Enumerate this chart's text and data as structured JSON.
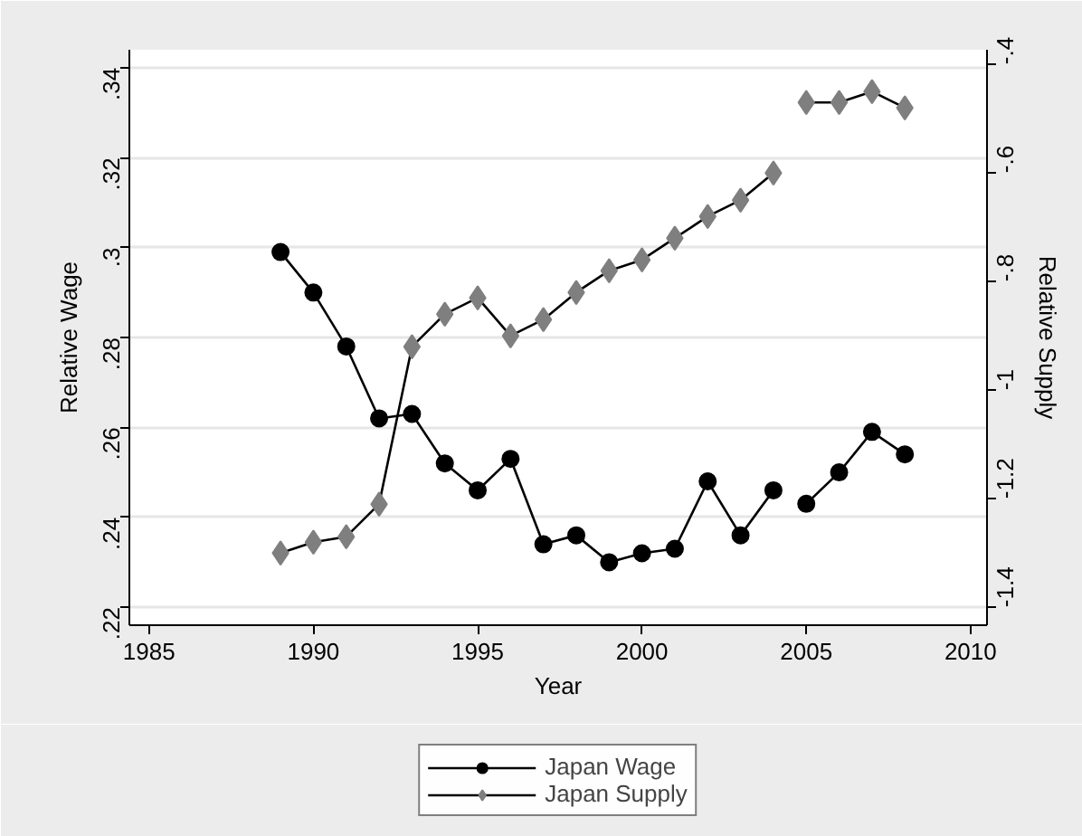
{
  "chart_data": {
    "type": "line",
    "xlabel": "Year",
    "ylabel": "Relative Wage",
    "y2label": "Relative Supply",
    "x": [
      1989,
      1990,
      1991,
      1992,
      1993,
      1994,
      1995,
      1996,
      1997,
      1998,
      1999,
      2000,
      2001,
      2002,
      2003,
      2004,
      2005,
      2006,
      2007,
      2008
    ],
    "series": [
      {
        "name": "Japan Wage",
        "color": "#000000",
        "marker": "circle",
        "values": [
          0.299,
          0.29,
          0.278,
          0.262,
          0.263,
          0.252,
          0.246,
          0.253,
          0.234,
          0.236,
          0.23,
          0.232,
          0.233,
          0.248,
          0.236,
          0.246,
          null,
          null,
          null,
          null
        ]
      },
      {
        "name": "Japan Supply",
        "color": "#7f7f7f",
        "marker": "diamond",
        "axis": "y2",
        "values": [
          -1.3,
          -1.28,
          -1.27,
          -1.21,
          -0.92,
          -0.86,
          -0.83,
          -0.9,
          -0.87,
          -0.82,
          -0.78,
          -0.76,
          -0.72,
          -0.68,
          -0.65,
          -0.6,
          null,
          null,
          null,
          null
        ]
      },
      {
        "color": "#000000",
        "marker": "circle",
        "values": [
          null,
          null,
          null,
          null,
          null,
          null,
          null,
          null,
          null,
          null,
          null,
          null,
          null,
          null,
          null,
          null,
          0.243,
          0.25,
          0.259,
          0.254
        ]
      },
      {
        "color": "#7f7f7f",
        "marker": "diamond",
        "axis": "y2",
        "values": [
          null,
          null,
          null,
          null,
          null,
          null,
          null,
          null,
          null,
          null,
          null,
          null,
          null,
          null,
          null,
          null,
          -0.47,
          -0.47,
          -0.45,
          -0.48
        ]
      }
    ],
    "xlim": [
      1984.4,
      2010.5
    ],
    "xticks": [
      1985,
      1990,
      1995,
      2000,
      2005,
      2010
    ],
    "ylim": [
      0.216,
      0.344
    ],
    "yticks": [
      {
        "value": 0.22,
        "label": ".22"
      },
      {
        "value": 0.24,
        "label": ".24"
      },
      {
        "value": 0.26,
        "label": ".26"
      },
      {
        "value": 0.28,
        "label": ".28"
      },
      {
        "value": 0.3,
        "label": ".3"
      },
      {
        "value": 0.32,
        "label": ".32"
      },
      {
        "value": 0.34,
        "label": ".34"
      }
    ],
    "y2lim": [
      -1.433,
      -0.373
    ],
    "y2ticks": [
      {
        "value": -1.4,
        "label": "-1.4"
      },
      {
        "value": -1.2,
        "label": "-1.2"
      },
      {
        "value": -1.0,
        "label": "-1"
      },
      {
        "value": -0.8,
        "label": "-.8"
      },
      {
        "value": -0.6,
        "label": "-.6"
      },
      {
        "value": -0.4,
        "label": "-.4"
      }
    ],
    "grid": "y",
    "legend": "bottom",
    "line_style": "solid"
  }
}
